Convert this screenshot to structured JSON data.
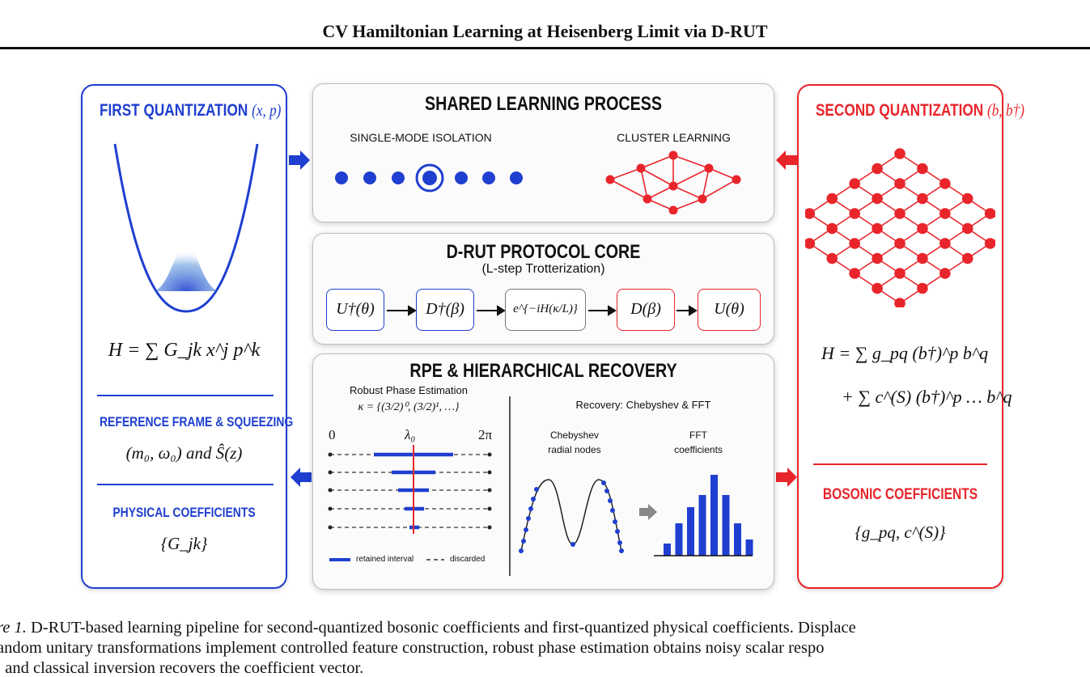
{
  "header": {
    "title": "CV Hamiltonian Learning at Heisenberg Limit via D-RUT"
  },
  "left": {
    "heading": "FIRST QUANTIZATION",
    "heading_vars": "(x, p)",
    "hamiltonian": "H = ∑ G_jk x^j p^k",
    "section1": "REFERENCE FRAME & SQUEEZING",
    "section1_math": "(m₀, ω₀) and Ŝ(z)",
    "section2": "PHYSICAL COEFFICIENTS",
    "section2_math": "{G_jk}"
  },
  "shared": {
    "heading": "SHARED LEARNING PROCESS",
    "single_mode": "SINGLE-MODE ISOLATION",
    "cluster": "CLUSTER LEARNING"
  },
  "core": {
    "heading": "D-RUT PROTOCOL CORE",
    "subheading": "(L-step Trotterization)",
    "steps": [
      "U†(θ)",
      "D†(β)",
      "e^{−iH(κ/L)}",
      "D(β)",
      "U(θ)"
    ]
  },
  "rpe": {
    "heading": "RPE & HIERARCHICAL RECOVERY",
    "robust_title": "Robust Phase Estimation",
    "kappa": "κ = {(3/2)⁰, (3/2)¹, …}",
    "axis_start": "0",
    "axis_mid": "λ₀",
    "axis_end": "2π",
    "legend_retained": "retained interval",
    "legend_discarded": "discarded",
    "recovery_title": "Recovery: Chebyshev & FFT",
    "cheb_label_1": "Chebyshev",
    "cheb_label_2": "radial nodes",
    "fft_label_1": "FFT",
    "fft_label_2": "coefficients",
    "fft_bars": [
      0.15,
      0.4,
      0.6,
      0.75,
      1.0,
      0.75,
      0.4,
      0.2
    ]
  },
  "right": {
    "heading": "SECOND QUANTIZATION",
    "heading_vars": "(b, b†)",
    "hamiltonian_1": "H = ∑ g_pq (b†)^p b^q",
    "hamiltonian_2": "+ ∑ c^(S) (b†)^p … b^q",
    "section": "BOSONIC COEFFICIENTS",
    "section_math": "{g_pq, c^(S)}"
  },
  "caption": {
    "label": "re 1.",
    "line1": "D-RUT-based learning pipeline for second-quantized bosonic coefficients and first-quantized physical coefficients. Displace",
    "line2": "andom unitary transformations implement controlled feature construction, robust phase estimation obtains noisy scalar respo",
    "line3": ", and classical inversion recovers the coefficient vector."
  },
  "colors": {
    "blue": "#1f3fd0",
    "red": "#e8252b"
  }
}
